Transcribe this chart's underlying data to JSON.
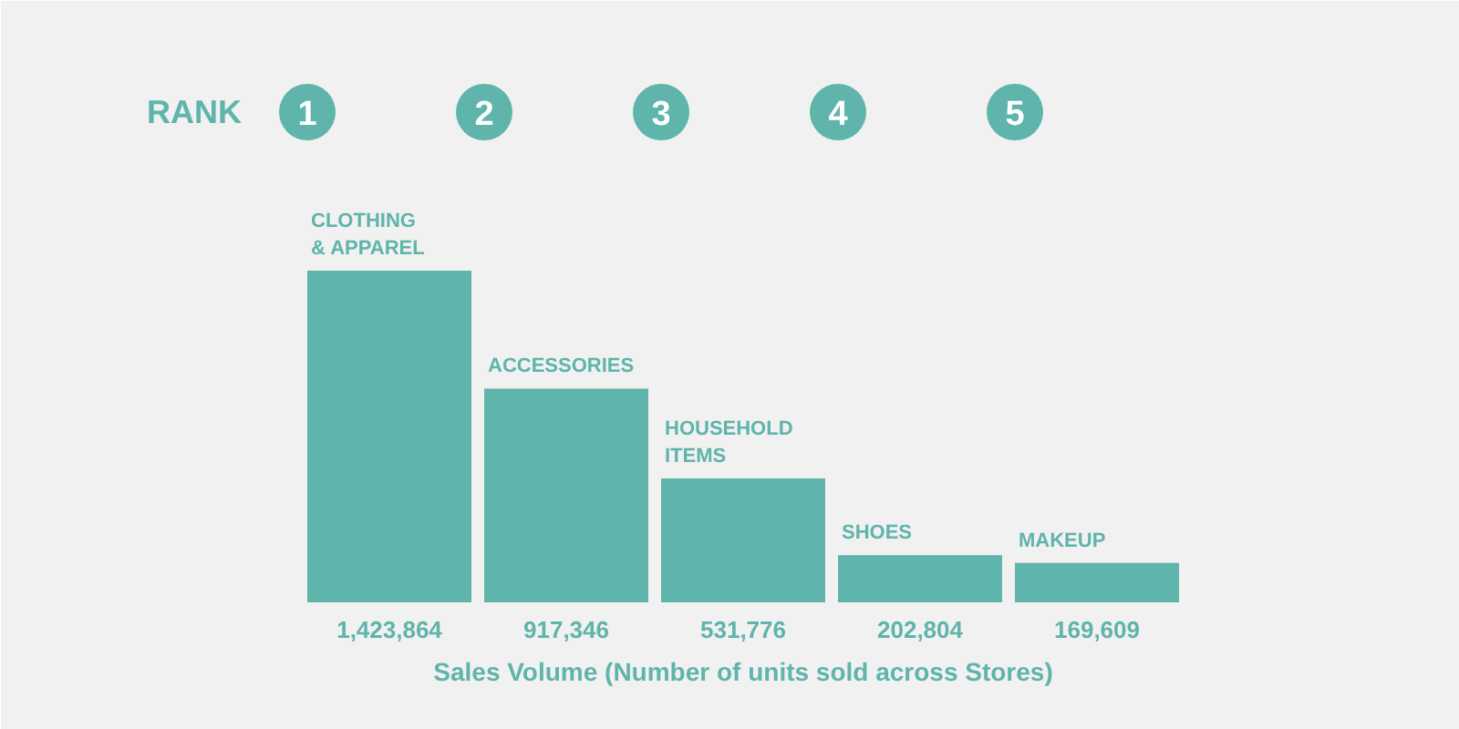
{
  "chart_data": {
    "type": "bar",
    "categories": [
      "CLOTHING & APPAREL",
      "ACCESSORIES",
      "HOUSEHOLD ITEMS",
      "SHOES",
      "MAKEUP"
    ],
    "values": [
      1423864,
      917346,
      531776,
      202804,
      169609
    ],
    "color": "#5fb4ab",
    "value_labels": [
      "1,423,864",
      "917,346",
      "531,776",
      "202,804",
      "169,609"
    ],
    "xlabel": "Sales Volume (Number of units sold across Stores)",
    "annotations": [
      "RANK",
      "1",
      "2",
      "3",
      "4",
      "5"
    ]
  }
}
